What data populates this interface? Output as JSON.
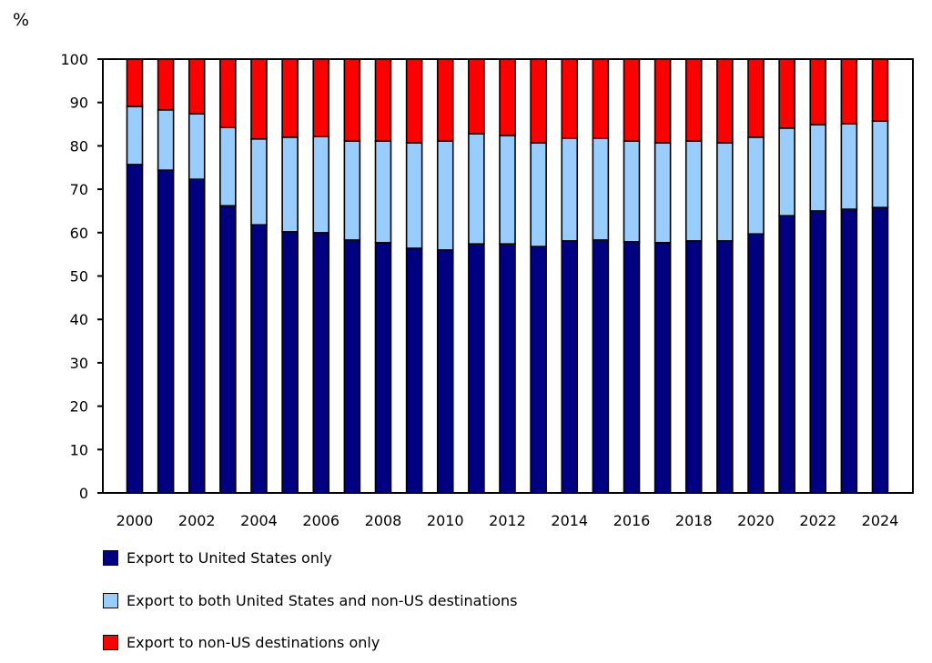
{
  "chart_data": {
    "type": "bar",
    "stacked": true,
    "title": "",
    "ylabel": "%",
    "xlabel": "",
    "ylim": [
      0,
      100
    ],
    "yticks": [
      0,
      10,
      20,
      30,
      40,
      50,
      60,
      70,
      80,
      90,
      100
    ],
    "grid": false,
    "legend_position": "bottom",
    "categories": [
      "2000",
      "2001",
      "2002",
      "2003",
      "2004",
      "2005",
      "2006",
      "2007",
      "2008",
      "2009",
      "2010",
      "2011",
      "2012",
      "2013",
      "2014",
      "2015",
      "2016",
      "2017",
      "2018",
      "2019",
      "2020",
      "2021",
      "2022",
      "2023",
      "2024"
    ],
    "xtick_labels": [
      "2000",
      "2002",
      "2004",
      "2006",
      "2008",
      "2010",
      "2012",
      "2014",
      "2016",
      "2018",
      "2020",
      "2022",
      "2024"
    ],
    "series": [
      {
        "name": "Export to United States only",
        "color": "#000080",
        "values": [
          75.7,
          74.4,
          72.3,
          66.2,
          61.8,
          60.2,
          60.0,
          58.3,
          57.7,
          56.4,
          56.0,
          57.4,
          57.4,
          56.8,
          58.1,
          58.3,
          57.9,
          57.7,
          58.1,
          58.1,
          59.7,
          63.9,
          65.0,
          65.4,
          65.8
        ]
      },
      {
        "name": "Export to both United States and non-US destinations",
        "color": "#99CCFF",
        "values": [
          13.4,
          13.9,
          15.1,
          18.1,
          19.8,
          21.8,
          22.2,
          22.8,
          23.4,
          24.3,
          25.1,
          25.4,
          25.0,
          23.9,
          23.7,
          23.5,
          23.2,
          23.0,
          23.0,
          22.6,
          22.3,
          20.2,
          19.9,
          19.7,
          19.9
        ]
      },
      {
        "name": "Export to non-US destinations only",
        "color": "#FF0000",
        "values": [
          10.9,
          11.7,
          12.6,
          15.7,
          18.4,
          18.0,
          17.8,
          18.9,
          18.9,
          19.3,
          18.9,
          17.2,
          17.6,
          19.3,
          18.2,
          18.2,
          18.9,
          19.3,
          18.9,
          19.3,
          18.0,
          15.9,
          15.1,
          14.9,
          14.3
        ]
      }
    ]
  }
}
